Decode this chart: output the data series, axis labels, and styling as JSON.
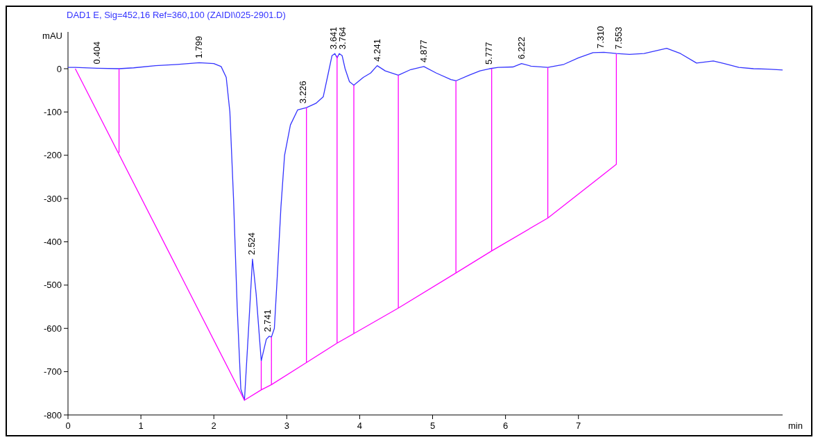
{
  "chart_data": {
    "type": "line",
    "title": "DAD1 E, Sig=452,16 Ref=360,100 (ZAIDI\\025-2901.D)",
    "xlabel": "min",
    "ylabel": "mAU",
    "xlim": [
      0,
      9.8
    ],
    "xticks": [
      0,
      1,
      2,
      3,
      4,
      5,
      6,
      7
    ],
    "ylim": [
      -800,
      85
    ],
    "yticks": [
      -800,
      -700,
      -600,
      -500,
      -400,
      -300,
      -200,
      -100,
      0
    ],
    "grid": false,
    "marker": "none",
    "line_style": "solid",
    "series": [
      {
        "color": "#3333ff",
        "x": [
          0,
          0.1,
          0.4,
          0.7,
          0.9,
          1.2,
          1.5,
          1.8,
          2.0,
          2.1,
          2.17,
          2.22,
          2.27,
          2.32,
          2.37,
          2.42,
          2.47,
          2.53,
          2.58,
          2.65,
          2.72,
          2.76,
          2.79,
          2.83,
          2.87,
          2.92,
          2.97,
          3.05,
          3.15,
          3.27,
          3.4,
          3.5,
          3.57,
          3.62,
          3.66,
          3.69,
          3.72,
          3.76,
          3.8,
          3.86,
          3.92,
          4.05,
          4.15,
          4.24,
          4.35,
          4.53,
          4.7,
          4.88,
          5.05,
          5.25,
          5.32,
          5.5,
          5.65,
          5.78,
          5.9,
          6.1,
          6.22,
          6.35,
          6.58,
          6.8,
          7.0,
          7.2,
          7.35,
          7.52,
          7.7,
          7.9,
          8.21,
          8.4,
          8.62,
          8.85,
          9.0,
          9.2,
          9.4,
          9.6,
          9.8
        ],
        "values": [
          3,
          3,
          1,
          0,
          2,
          7,
          10,
          14,
          12,
          5,
          -20,
          -100,
          -300,
          -550,
          -740,
          -766,
          -620,
          -440,
          -520,
          -675,
          -625,
          -618,
          -620,
          -600,
          -480,
          -320,
          -200,
          -130,
          -95,
          -90,
          -80,
          -65,
          -10,
          30,
          35,
          25,
          35,
          30,
          0,
          -30,
          -38,
          -20,
          -10,
          7,
          -5,
          -15,
          -2,
          5,
          -10,
          -25,
          -28,
          -15,
          -5,
          0,
          3,
          4,
          12,
          6,
          3,
          10,
          25,
          37,
          38,
          35,
          33,
          35,
          47,
          35,
          13,
          18,
          12,
          3,
          0,
          -1,
          -3
        ]
      },
      {
        "color": "#ff00ff",
        "x": [
          0.1,
          2.42,
          2.65,
          2.79,
          3.27,
          3.69,
          3.92,
          4.53,
          5.32,
          5.81,
          6.58,
          7.52,
          7.52,
          null,
          0.7,
          0.7,
          null,
          2.65,
          2.65,
          null,
          2.79,
          2.79,
          null,
          3.27,
          3.27,
          null,
          3.69,
          3.69,
          null,
          3.92,
          3.92,
          null,
          4.53,
          4.53,
          null,
          5.32,
          5.32,
          null,
          5.81,
          5.81,
          null,
          6.58,
          6.58
        ],
        "values": [
          0,
          -766,
          -742,
          -730,
          -679,
          -634,
          -612,
          -553,
          -472,
          -421,
          -345,
          -221,
          35,
          null,
          -194,
          0,
          null,
          -742,
          -675,
          null,
          -730,
          -620,
          null,
          -679,
          -90,
          null,
          -634,
          30,
          null,
          -612,
          -38,
          null,
          -553,
          -15,
          null,
          -472,
          -28,
          null,
          -421,
          0,
          null,
          -345,
          3
        ]
      }
    ],
    "annotations": [
      {
        "text": "0.404",
        "x": 0.404,
        "y": 1
      },
      {
        "text": "1.799",
        "x": 1.799,
        "y": 14
      },
      {
        "text": "2.524",
        "x": 2.524,
        "y": -440
      },
      {
        "text": "2.741",
        "x": 2.741,
        "y": -618
      },
      {
        "text": "3.226",
        "x": 3.226,
        "y": -90
      },
      {
        "text": "3.641",
        "x": 3.641,
        "y": 35
      },
      {
        "text": "3.764",
        "x": 3.764,
        "y": 35
      },
      {
        "text": "4.241",
        "x": 4.241,
        "y": 7
      },
      {
        "text": "4.877",
        "x": 4.877,
        "y": 5
      },
      {
        "text": "5.777",
        "x": 5.777,
        "y": 0
      },
      {
        "text": "6.222",
        "x": 6.222,
        "y": 12
      },
      {
        "text": "7.310",
        "x": 7.31,
        "y": 37
      },
      {
        "text": "7.553",
        "x": 7.553,
        "y": 35
      }
    ]
  }
}
